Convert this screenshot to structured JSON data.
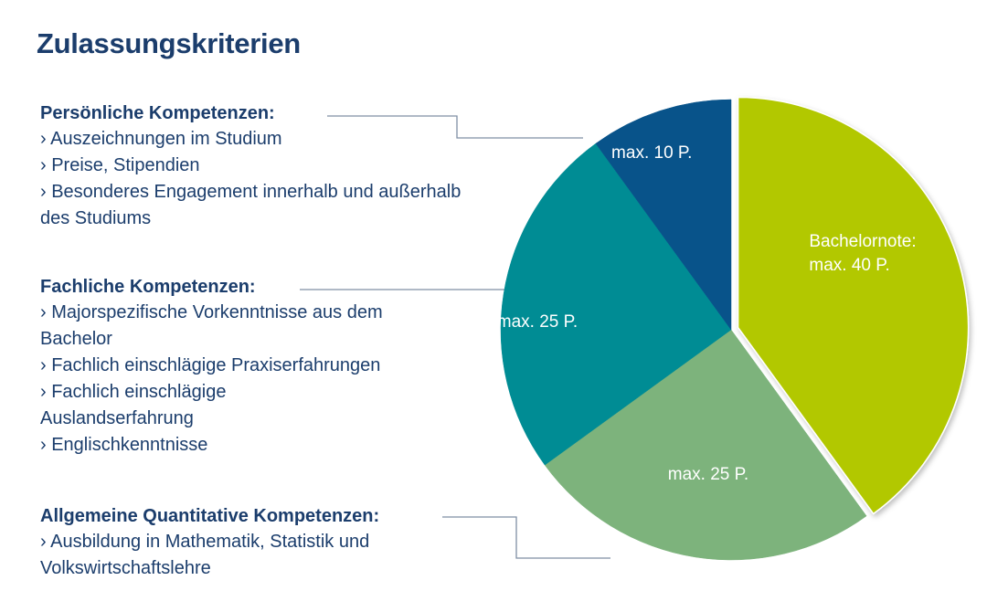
{
  "title": "Zulassungskriterien",
  "sections": [
    {
      "title": "Persönliche Kompetenzen:",
      "items": [
        "› Auszeichnungen im Studium",
        "› Preise, Stipendien",
        "› Besonderes Engagement innerhalb und außerhalb des Studiums"
      ]
    },
    {
      "title": "Fachliche Kompetenzen:",
      "items": [
        "› Majorspezifische Vorkenntnisse aus dem Bachelor",
        "› Fachlich einschlägige Praxiserfahrungen",
        "› Fachlich einschlägige Auslandserfahrung",
        "› Englischkenntnisse"
      ]
    },
    {
      "title": "Allgemeine Quantitative Kompetenzen:",
      "items": [
        "› Ausbildung in Mathematik, Statistik und Volkswirtschaftslehre"
      ]
    }
  ],
  "chart_data": {
    "type": "pie",
    "slices": [
      {
        "label_lines": [
          "Bachelornote:",
          "max. 40 P."
        ],
        "value": 40,
        "color": "#b2c800",
        "exploded": true
      },
      {
        "label_lines": [
          "max. 25 P."
        ],
        "value": 25,
        "color": "#7db37c"
      },
      {
        "label_lines": [
          "max. 25 P."
        ],
        "value": 25,
        "color": "#008c94"
      },
      {
        "label_lines": [
          "max. 10 P."
        ],
        "value": 10,
        "color": "#08538a"
      }
    ],
    "start_angle_deg": 0,
    "direction": "clockwise"
  },
  "colors": {
    "title_text": "#1b3d6c",
    "connector_line": "#7f8fa5"
  }
}
